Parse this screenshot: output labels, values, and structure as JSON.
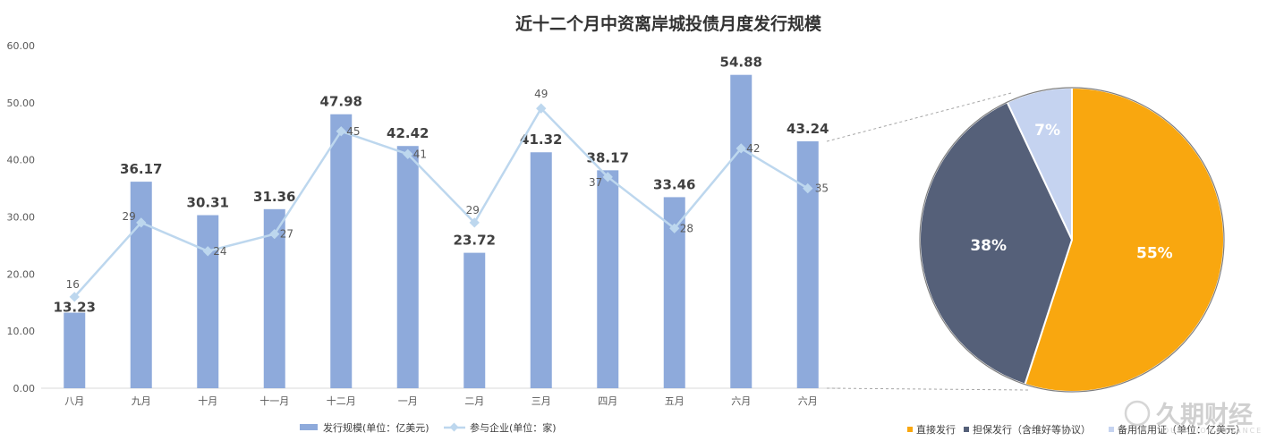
{
  "chart_data": [
    {
      "type": "bar+line",
      "title": "近十二个月中资离岸城投债月度发行规模",
      "categories": [
        "八月",
        "九月",
        "十月",
        "十一月",
        "十二月",
        "一月",
        "二月",
        "三月",
        "四月",
        "五月",
        "六月",
        "六月"
      ],
      "series": [
        {
          "name": "发行规模(单位：亿美元)",
          "type": "bar",
          "values": [
            13.23,
            36.17,
            30.31,
            31.36,
            47.98,
            42.42,
            23.72,
            41.32,
            38.17,
            33.46,
            54.88,
            43.24
          ],
          "labels": [
            "13.23",
            "36.17",
            "30.31",
            "31.36",
            "47.98",
            "42.42",
            "23.72",
            "41.32",
            "38.17",
            "33.46",
            "54.88",
            "43.24"
          ]
        },
        {
          "name": "参与企业(单位：家)",
          "type": "line",
          "values": [
            16,
            29,
            24,
            27,
            45,
            41,
            29,
            49,
            37,
            28,
            42,
            35
          ],
          "labels": [
            "16",
            "29",
            "24",
            "27",
            "45",
            "41",
            "29",
            "49",
            "37",
            "28",
            "42",
            "35"
          ]
        }
      ],
      "yaxis": {
        "min": 0,
        "max": 60,
        "step": 10,
        "tick_labels": [
          "0.00",
          "10.00",
          "20.00",
          "30.00",
          "40.00",
          "50.00",
          "60.00"
        ]
      },
      "grid": false,
      "legend": "bottom"
    },
    {
      "type": "pie",
      "slices": [
        {
          "name": "直接发行",
          "value": 55,
          "label": "55%",
          "color": "#f9a70f"
        },
        {
          "name": "担保发行（含维好等协议）",
          "value": 38,
          "label": "38%",
          "color": "#556079"
        },
        {
          "name": "备用信用证（单位：亿美元）",
          "value": 7,
          "label": "7%",
          "color": "#c5d3f0"
        }
      ],
      "legend": "bottom"
    }
  ],
  "colors": {
    "bar": "#8eaadb",
    "line": "#bdd7ee",
    "connector": "#a6a6a6"
  },
  "watermark": {
    "text": "久期财经",
    "sub": "DURATION FINANCE"
  }
}
